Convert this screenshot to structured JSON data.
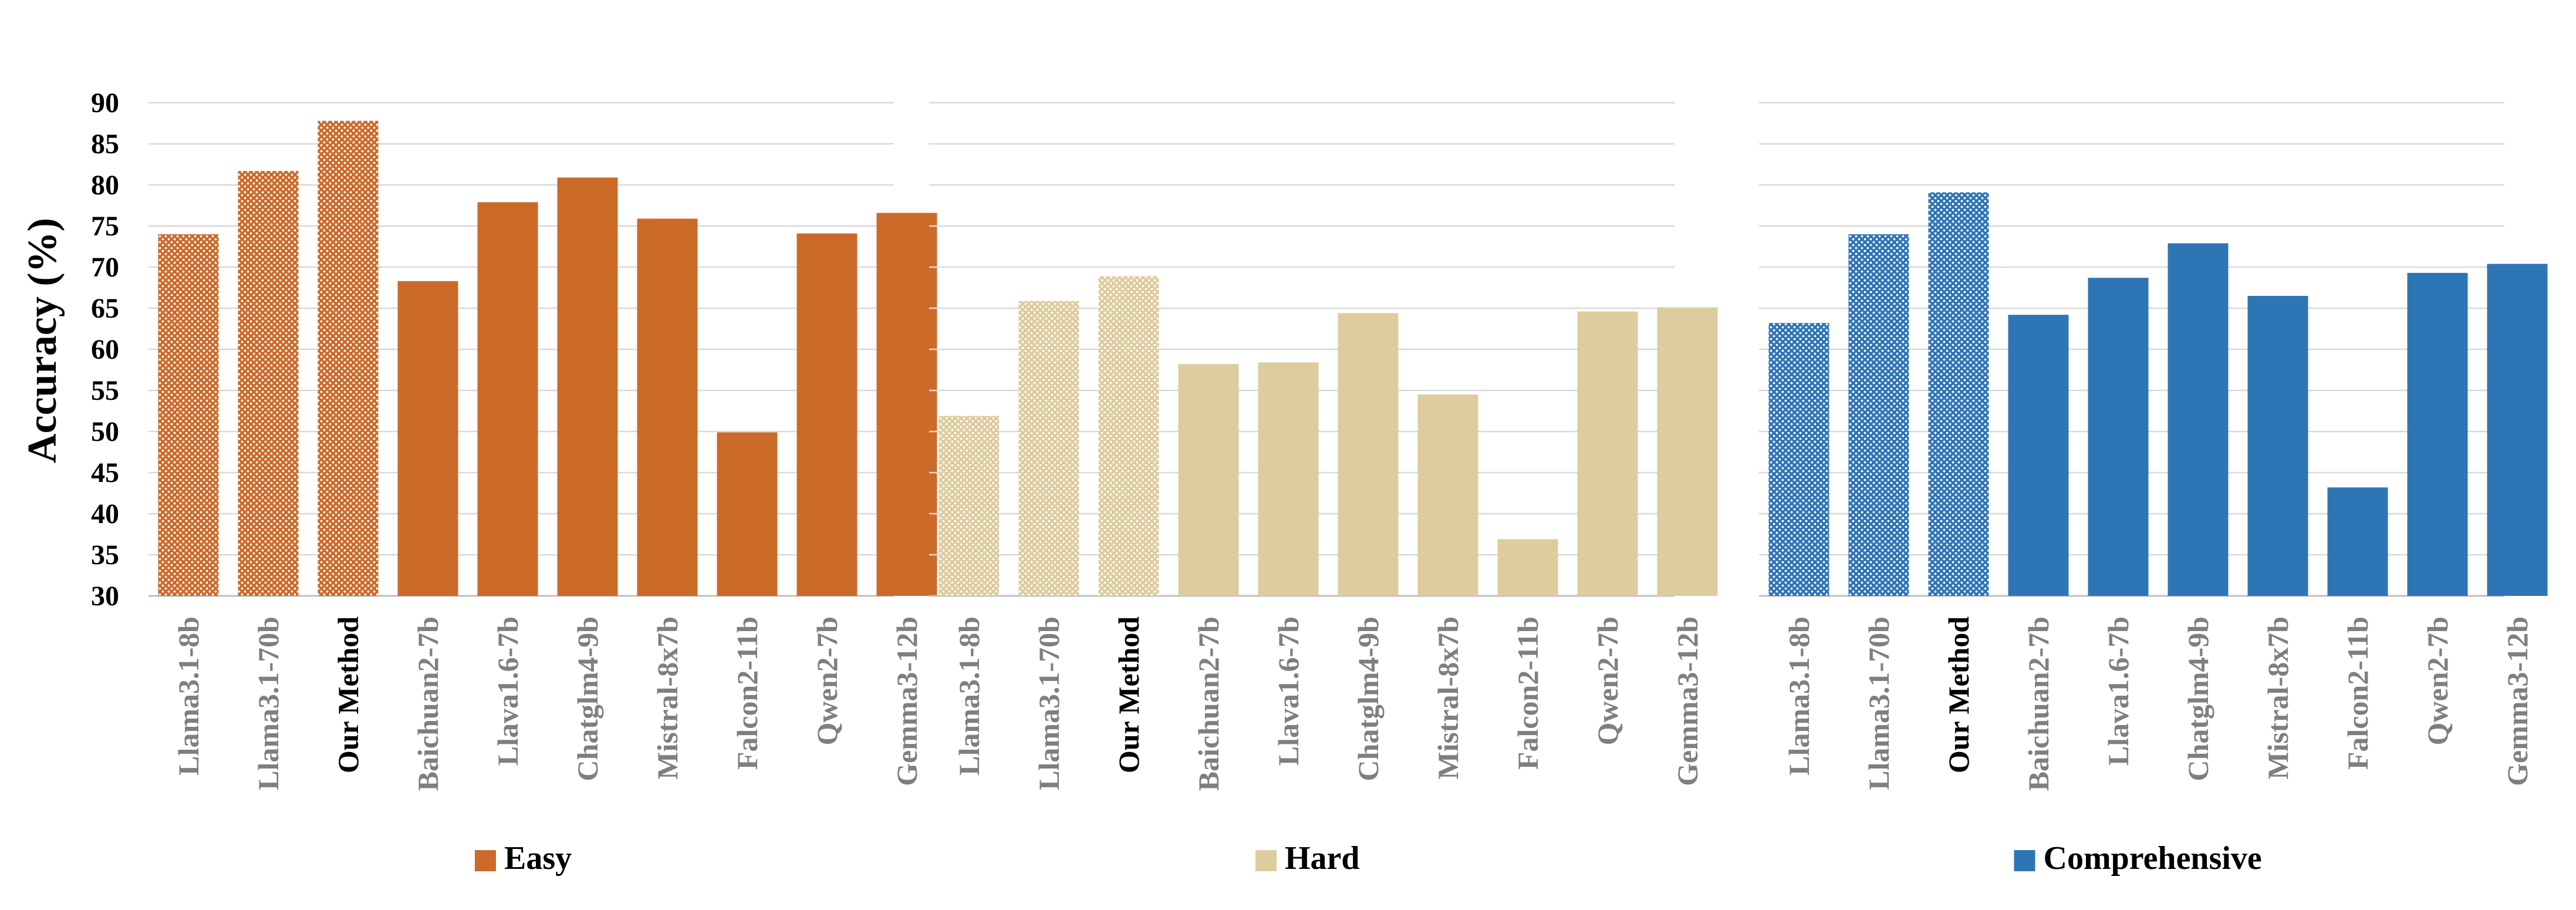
{
  "shared": {
    "ylabel": "Accuracy (%)",
    "ylim": [
      30,
      90
    ],
    "yticks": [
      30,
      35,
      40,
      45,
      50,
      55,
      60,
      65,
      70,
      75,
      80,
      85,
      90
    ],
    "highlight_category": "Our Method",
    "hatched_categories": [
      "Llama3.1-8b",
      "Llama3.1-70b",
      "Our Method"
    ]
  },
  "chart_data": [
    {
      "type": "bar",
      "title": "",
      "legend": "Easy",
      "legend_position": "bottom",
      "color": "#CC6A2A",
      "categories": [
        "Llama3.1-8b",
        "Llama3.1-70b",
        "Our Method",
        "Baichuan2-7b",
        "Llava1.6-7b",
        "Chatglm4-9b",
        "Mistral-8x7b",
        "Falcon2-11b",
        "Qwen2-7b",
        "Gemma3-12b"
      ],
      "values": [
        74.0,
        81.7,
        87.8,
        68.3,
        77.9,
        80.9,
        75.9,
        49.9,
        74.1,
        76.6
      ],
      "ylim": [
        30,
        90
      ],
      "grid": true
    },
    {
      "type": "bar",
      "title": "",
      "legend": "Hard",
      "legend_position": "bottom",
      "color": "#DDCC9C",
      "categories": [
        "Llama3.1-8b",
        "Llama3.1-70b",
        "Our Method",
        "Baichuan2-7b",
        "Llava1.6-7b",
        "Chatglm4-9b",
        "Mistral-8x7b",
        "Falcon2-11b",
        "Qwen2-7b",
        "Gemma3-12b"
      ],
      "values": [
        51.9,
        65.9,
        68.9,
        58.2,
        58.4,
        64.4,
        54.5,
        36.9,
        64.6,
        65.1
      ],
      "ylim": [
        30,
        90
      ],
      "grid": true
    },
    {
      "type": "bar",
      "title": "",
      "legend": "Comprehensive",
      "legend_position": "bottom",
      "color": "#2E75B6",
      "categories": [
        "Llama3.1-8b",
        "Llama3.1-70b",
        "Our Method",
        "Baichuan2-7b",
        "Llava1.6-7b",
        "Chatglm4-9b",
        "Mistral-8x7b",
        "Falcon2-11b",
        "Qwen2-7b",
        "Gemma3-12b"
      ],
      "values": [
        63.2,
        74.0,
        79.1,
        64.2,
        68.7,
        72.9,
        66.5,
        43.2,
        69.3,
        70.4
      ],
      "ylim": [
        30,
        90
      ],
      "grid": true
    }
  ]
}
